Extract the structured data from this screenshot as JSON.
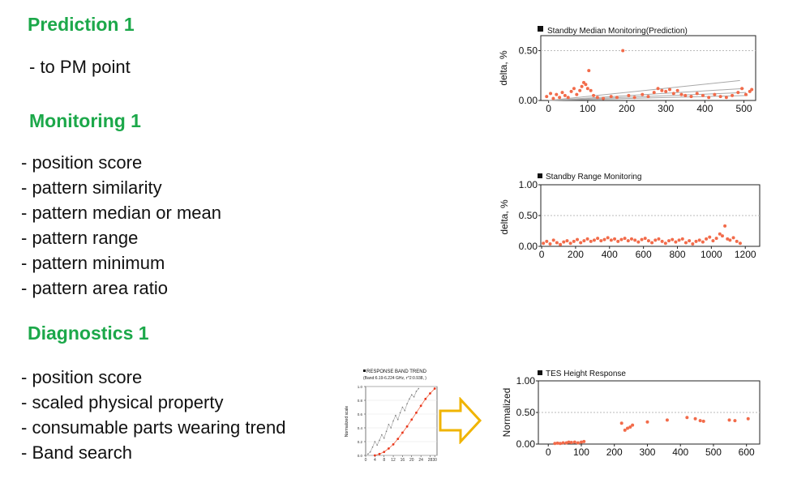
{
  "sections": [
    {
      "title": "Prediction 1",
      "items": [
        "- to PM point"
      ]
    },
    {
      "title": "Monitoring 1",
      "items": [
        "- position score",
        "- pattern similarity",
        "- pattern median or mean",
        "- pattern range",
        "- pattern minimum",
        "- pattern area ratio"
      ]
    },
    {
      "title": "Diagnostics 1",
      "items": [
        "- position score",
        "- scaled physical property",
        "- consumable parts wearing trend",
        "- Band search"
      ]
    }
  ],
  "colors": {
    "heading": "#1ca84a",
    "points": "#f26b4a",
    "arrow": "#f0b400",
    "trend_line": "#a8a8a8"
  },
  "chart_data": [
    {
      "type": "scatter",
      "title": "Standby Median Monitoring(Prediction)",
      "ylabel": "delta, %",
      "xlim": [
        -20,
        530
      ],
      "ylim": [
        0,
        0.65
      ],
      "xticks": [
        "0",
        "100",
        "200",
        "300",
        "400",
        "500"
      ],
      "yticks": [
        "0.00",
        "0.50"
      ],
      "grid_y": [
        0.5
      ],
      "points": [
        [
          -5,
          0.04
        ],
        [
          5,
          0.07
        ],
        [
          12,
          0.02
        ],
        [
          20,
          0.06
        ],
        [
          28,
          0.03
        ],
        [
          35,
          0.08
        ],
        [
          42,
          0.05
        ],
        [
          50,
          0.03
        ],
        [
          58,
          0.09
        ],
        [
          65,
          0.12
        ],
        [
          72,
          0.06
        ],
        [
          80,
          0.1
        ],
        [
          85,
          0.14
        ],
        [
          90,
          0.18
        ],
        [
          95,
          0.16
        ],
        [
          100,
          0.12
        ],
        [
          103,
          0.3
        ],
        [
          108,
          0.1
        ],
        [
          115,
          0.05
        ],
        [
          125,
          0.03
        ],
        [
          140,
          0.02
        ],
        [
          160,
          0.04
        ],
        [
          175,
          0.03
        ],
        [
          190,
          0.5
        ],
        [
          205,
          0.05
        ],
        [
          220,
          0.03
        ],
        [
          240,
          0.06
        ],
        [
          255,
          0.04
        ],
        [
          270,
          0.08
        ],
        [
          280,
          0.12
        ],
        [
          290,
          0.1
        ],
        [
          300,
          0.09
        ],
        [
          310,
          0.11
        ],
        [
          320,
          0.07
        ],
        [
          330,
          0.1
        ],
        [
          340,
          0.06
        ],
        [
          350,
          0.05
        ],
        [
          365,
          0.04
        ],
        [
          380,
          0.07
        ],
        [
          395,
          0.05
        ],
        [
          410,
          0.03
        ],
        [
          425,
          0.06
        ],
        [
          440,
          0.04
        ],
        [
          455,
          0.03
        ],
        [
          470,
          0.05
        ],
        [
          485,
          0.08
        ],
        [
          495,
          0.12
        ],
        [
          505,
          0.06
        ],
        [
          515,
          0.09
        ],
        [
          520,
          0.11
        ]
      ],
      "trend_lines": [
        [
          [
            0,
            0.0
          ],
          [
            490,
            0.2
          ]
        ],
        [
          [
            0,
            0.0
          ],
          [
            500,
            0.12
          ]
        ],
        [
          [
            0,
            0.0
          ],
          [
            505,
            0.08
          ]
        ],
        [
          [
            0,
            0.0
          ],
          [
            510,
            0.05
          ]
        ]
      ]
    },
    {
      "type": "scatter",
      "title": "Standby Range Monitoring",
      "ylabel": "delta, %",
      "xlim": [
        -5,
        1285
      ],
      "ylim": [
        0,
        1.0
      ],
      "xticks": [
        "0",
        "200",
        "400",
        "600",
        "800",
        "1000",
        "1200"
      ],
      "yticks": [
        "0.00",
        "0.50",
        "1.00"
      ],
      "grid_y": [
        0.5
      ],
      "points": [
        [
          10,
          0.05
        ],
        [
          30,
          0.08
        ],
        [
          50,
          0.04
        ],
        [
          70,
          0.1
        ],
        [
          90,
          0.06
        ],
        [
          110,
          0.03
        ],
        [
          130,
          0.07
        ],
        [
          150,
          0.09
        ],
        [
          170,
          0.05
        ],
        [
          190,
          0.08
        ],
        [
          210,
          0.11
        ],
        [
          230,
          0.06
        ],
        [
          250,
          0.09
        ],
        [
          270,
          0.12
        ],
        [
          290,
          0.08
        ],
        [
          310,
          0.1
        ],
        [
          330,
          0.13
        ],
        [
          350,
          0.09
        ],
        [
          370,
          0.11
        ],
        [
          390,
          0.14
        ],
        [
          410,
          0.1
        ],
        [
          430,
          0.12
        ],
        [
          450,
          0.08
        ],
        [
          470,
          0.11
        ],
        [
          490,
          0.13
        ],
        [
          510,
          0.09
        ],
        [
          530,
          0.12
        ],
        [
          550,
          0.1
        ],
        [
          570,
          0.07
        ],
        [
          590,
          0.11
        ],
        [
          610,
          0.13
        ],
        [
          630,
          0.09
        ],
        [
          650,
          0.06
        ],
        [
          670,
          0.1
        ],
        [
          690,
          0.12
        ],
        [
          710,
          0.08
        ],
        [
          730,
          0.05
        ],
        [
          750,
          0.09
        ],
        [
          770,
          0.11
        ],
        [
          790,
          0.07
        ],
        [
          810,
          0.1
        ],
        [
          830,
          0.12
        ],
        [
          850,
          0.06
        ],
        [
          870,
          0.09
        ],
        [
          890,
          0.04
        ],
        [
          910,
          0.08
        ],
        [
          930,
          0.1
        ],
        [
          950,
          0.07
        ],
        [
          970,
          0.12
        ],
        [
          990,
          0.15
        ],
        [
          1010,
          0.09
        ],
        [
          1030,
          0.13
        ],
        [
          1050,
          0.2
        ],
        [
          1065,
          0.17
        ],
        [
          1080,
          0.33
        ],
        [
          1095,
          0.12
        ],
        [
          1110,
          0.1
        ],
        [
          1130,
          0.14
        ],
        [
          1150,
          0.08
        ],
        [
          1170,
          0.05
        ]
      ]
    },
    {
      "type": "scatter",
      "title": "TES Height Response",
      "ylabel": "Normalized",
      "xlim": [
        -30,
        640
      ],
      "ylim": [
        0,
        1.0
      ],
      "xticks": [
        "0",
        "100",
        "200",
        "300",
        "400",
        "500",
        "600"
      ],
      "yticks": [
        "0.00",
        "0.50",
        "1.00"
      ],
      "grid_y": [
        0.5
      ],
      "points": [
        [
          20,
          0.01
        ],
        [
          28,
          0.015
        ],
        [
          36,
          0.01
        ],
        [
          45,
          0.02
        ],
        [
          55,
          0.02
        ],
        [
          62,
          0.03
        ],
        [
          70,
          0.025
        ],
        [
          80,
          0.03
        ],
        [
          90,
          0.02
        ],
        [
          100,
          0.03
        ],
        [
          108,
          0.04
        ],
        [
          222,
          0.33
        ],
        [
          232,
          0.22
        ],
        [
          240,
          0.25
        ],
        [
          248,
          0.27
        ],
        [
          255,
          0.3
        ],
        [
          300,
          0.35
        ],
        [
          360,
          0.38
        ],
        [
          420,
          0.42
        ],
        [
          445,
          0.4
        ],
        [
          460,
          0.37
        ],
        [
          470,
          0.36
        ],
        [
          548,
          0.38
        ],
        [
          565,
          0.37
        ],
        [
          605,
          0.4
        ]
      ]
    },
    {
      "type": "line",
      "title": "RESPONSE BAND TREND",
      "subtitle": "(Band:6.19-6.224 GHz, r^2:0.938, )",
      "ylabel": "Normalized scale",
      "xlim": [
        0,
        31
      ],
      "ylim": [
        0,
        1.0
      ],
      "xticks": [
        "0",
        "4",
        "8",
        "12",
        "16",
        "20",
        "24",
        "28",
        "30"
      ],
      "yticks": [
        "0.0",
        "0.2",
        "0.4",
        "0.6",
        "0.8",
        "1.0"
      ],
      "series": [
        {
          "values": [
            [
              1,
              0.02
            ],
            [
              2,
              0.05
            ],
            [
              3,
              0.12
            ],
            [
              4,
              0.2
            ],
            [
              5,
              0.15
            ],
            [
              6,
              0.22
            ],
            [
              7,
              0.3
            ],
            [
              8,
              0.25
            ],
            [
              9,
              0.35
            ],
            [
              10,
              0.45
            ],
            [
              11,
              0.4
            ],
            [
              12,
              0.5
            ],
            [
              13,
              0.58
            ],
            [
              14,
              0.52
            ],
            [
              15,
              0.62
            ],
            [
              16,
              0.7
            ],
            [
              17,
              0.65
            ],
            [
              18,
              0.75
            ],
            [
              19,
              0.82
            ],
            [
              20,
              0.88
            ],
            [
              21,
              0.85
            ],
            [
              22,
              0.93
            ],
            [
              23,
              0.97
            ]
          ]
        },
        {
          "values": [
            [
              4,
              0.0
            ],
            [
              6,
              0.02
            ],
            [
              8,
              0.05
            ],
            [
              10,
              0.1
            ],
            [
              12,
              0.16
            ],
            [
              14,
              0.24
            ],
            [
              16,
              0.33
            ],
            [
              18,
              0.42
            ],
            [
              20,
              0.52
            ],
            [
              22,
              0.62
            ],
            [
              24,
              0.72
            ],
            [
              26,
              0.82
            ],
            [
              28,
              0.9
            ],
            [
              30,
              0.97
            ]
          ]
        }
      ]
    }
  ]
}
